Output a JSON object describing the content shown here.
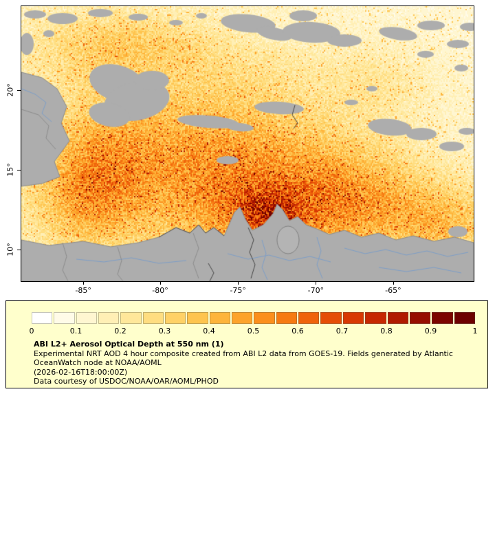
{
  "map": {
    "x_axis": {
      "ticks": [
        {
          "label": "-85°",
          "f": 0.137
        },
        {
          "label": "-80°",
          "f": 0.307
        },
        {
          "label": "-75°",
          "f": 0.479
        },
        {
          "label": "-70°",
          "f": 0.651
        },
        {
          "label": "-65°",
          "f": 0.822
        }
      ]
    },
    "y_axis": {
      "ticks": [
        {
          "label": "20°",
          "f": 0.305
        },
        {
          "label": "15°",
          "f": 0.595
        },
        {
          "label": "10°",
          "f": 0.885
        }
      ]
    },
    "land_color": "#adadad",
    "lake_color": "#b4b4b4",
    "border_line_color": "#8c8c8c",
    "river_color": "#7d9ec8",
    "dark_border_color": "#444444"
  },
  "legend": {
    "background": "#ffffcc",
    "colorbar": {
      "min": 0,
      "max": 1,
      "tick_labels": [
        "0",
        "0.1",
        "0.2",
        "0.3",
        "0.4",
        "0.5",
        "0.6",
        "0.7",
        "0.8",
        "0.9",
        "1"
      ],
      "colors": [
        "#ffffff",
        "#fffbe8",
        "#fff6d1",
        "#ffefb5",
        "#ffe79a",
        "#ffdd80",
        "#ffd166",
        "#fec44f",
        "#feb43b",
        "#fda32b",
        "#fb8f1d",
        "#f67a12",
        "#ef630b",
        "#e54d06",
        "#d83903",
        "#c62801",
        "#b01a01",
        "#960d00",
        "#7c0400",
        "#6d0000"
      ]
    },
    "caption": {
      "title": "ABI L2+ Aerosol Optical Depth at 550 nm (1)",
      "line1": "Experimental NRT AOD 4 hour composite created from ABI L2 data from GOES-19. Fields generated by Atlantic",
      "line2": "OceanWatch node at NOAA/AOML",
      "line3": "(2026-02-16T18:00:00Z)",
      "line4": "Data courtesy of USDOC/NOAA/OAR/AOML/PHOD"
    }
  }
}
